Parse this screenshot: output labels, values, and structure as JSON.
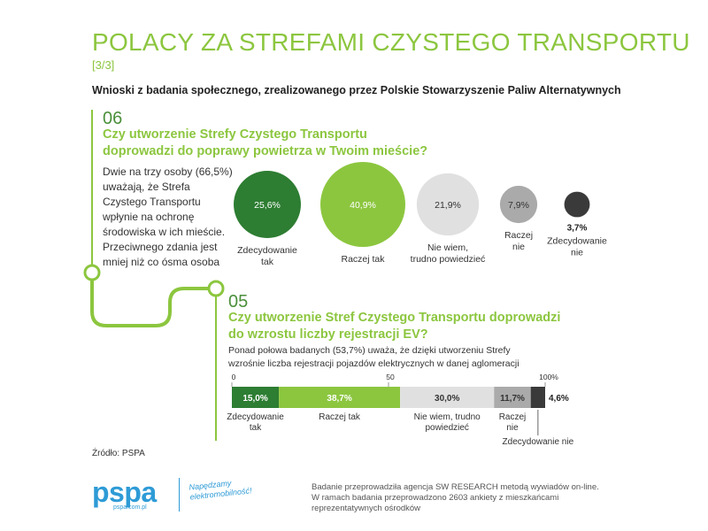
{
  "header": {
    "title": "POLACY ZA STREFAMI CZYSTEGO TRANSPORTU",
    "subtitle": "[3/3]",
    "lead": "Wnioski z badania społecznego, zrealizowanego przez Polskie Stowarzyszenie Paliw Alternatywnych"
  },
  "section6": {
    "number": "06",
    "question_line1": "Czy utworzenie Strefy Czystego Transportu",
    "question_line2": "doprowadzi do poprawy powietrza w Twoim mieście?",
    "description": "Dwie na trzy osoby (66,5%) uważają, że Strefa Czystego Transportu wpłynie na ochronę środowiska w ich mieście. Przeciwnego zdania jest mniej niż co ósma osoba"
  },
  "section5": {
    "number": "05",
    "question_line1": "Czy utworzenie Stref Czystego Transportu doprowadzi",
    "question_line2": "do wzrostu liczby rejestracji EV?",
    "description": "Ponad połowa badanych (53,7%) uważa, że dzięki utworzeniu Strefy wzrośnie liczba rejestracji pojazdów elektrycznych w danej aglomeracji"
  },
  "chart_data": [
    {
      "type": "bubble",
      "categories": [
        {
          "line1": "Zdecydowanie",
          "line2": "tak"
        },
        {
          "line1": "Raczej tak",
          "line2": ""
        },
        {
          "line1": "Nie wiem,",
          "line2": "trudno powiedzieć"
        },
        {
          "line1": "Raczej",
          "line2": "nie"
        },
        {
          "line1": "Zdecydowanie",
          "line2": "nie"
        }
      ],
      "values": [
        25.6,
        40.9,
        21.9,
        7.9,
        3.7
      ],
      "value_labels": [
        "25,6%",
        "40,9%",
        "21,9%",
        "7,9%",
        "3,7%"
      ],
      "colors": [
        "#2d7d32",
        "#8cc63f",
        "#e0e0e0",
        "#aaaaaa",
        "#3a3a3a"
      ],
      "label_colors": [
        "#ffffff",
        "#ffffff",
        "#333333",
        "#333333",
        "#333333"
      ]
    },
    {
      "type": "stacked-bar",
      "axis_ticks": [
        "0",
        "50",
        "100%"
      ],
      "xlim": [
        0,
        100
      ],
      "segments": [
        {
          "label": "Zdecydowanie tak",
          "value": 15.0,
          "value_label": "15,0%",
          "color": "#2d7d32",
          "text_color": "#ffffff"
        },
        {
          "label": "Raczej tak",
          "value": 38.7,
          "value_label": "38,7%",
          "color": "#8cc63f",
          "text_color": "#ffffff"
        },
        {
          "label": "Nie wiem, trudno powiedzieć",
          "value": 30.0,
          "value_label": "30,0%",
          "color": "#e0e0e0",
          "text_color": "#333333"
        },
        {
          "label": "Raczej nie",
          "value": 11.7,
          "value_label": "11,7%",
          "color": "#aaaaaa",
          "text_color": "#333333"
        },
        {
          "label": "Zdecydowanie nie",
          "value": 4.6,
          "value_label": "4,6%",
          "color": "#3a3a3a",
          "text_color": "#333333"
        }
      ],
      "category_labels": [
        {
          "line1": "Zdecydowanie",
          "line2": "tak"
        },
        {
          "line1": "Raczej tak",
          "line2": ""
        },
        {
          "line1": "Nie wiem, trudno",
          "line2": "powiedzieć"
        },
        {
          "line1": "Raczej",
          "line2": "nie"
        },
        {
          "line1": "Zdecydowanie nie",
          "line2": ""
        }
      ]
    }
  ],
  "footer": {
    "source": "Źródło: PSPA",
    "brand": "pspa",
    "brand_url": "pspa.com.pl",
    "slogan": "Napędzamy elektromobilność!",
    "note": "Badanie przeprowadziła agencja SW RESEARCH metodą wywiadów on-line. W ramach badania przeprowadzono 2603 ankiety z mieszkańcami reprezentatywnych ośrodków"
  },
  "colors": {
    "accent": "#8cc63f",
    "dark_green": "#4a8f3a",
    "brand_blue": "#2e9bd6"
  }
}
